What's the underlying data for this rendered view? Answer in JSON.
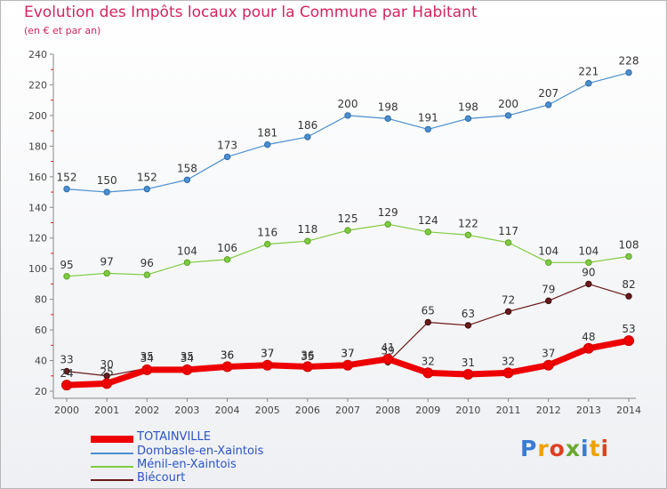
{
  "title": "Evolution des Impôts locaux pour la Commune par Habitant",
  "subtitle": "(en € et par an)",
  "logo_text": "Proxiti",
  "chart_data": {
    "type": "line",
    "title": "Evolution des Impôts locaux pour la Commune par Habitant",
    "subtitle": "(en € et par an)",
    "xlabel": "",
    "ylabel": "",
    "x": [
      2000,
      2001,
      2002,
      2003,
      2004,
      2005,
      2006,
      2007,
      2008,
      2009,
      2010,
      2011,
      2012,
      2013,
      2014
    ],
    "ylim": [
      20,
      240
    ],
    "yticks": [
      20,
      40,
      60,
      80,
      100,
      120,
      140,
      160,
      180,
      200,
      220,
      240
    ],
    "grid": false,
    "legend_position": "bottom-left",
    "series": [
      {
        "name": "TOTAINVILLE",
        "color": "#ee0000",
        "values": [
          24,
          25,
          34,
          34,
          36,
          37,
          36,
          37,
          41,
          32,
          31,
          32,
          37,
          48,
          53
        ]
      },
      {
        "name": "Dombasle-en-Xaintois",
        "color": "#4a8fd0",
        "values": [
          152,
          150,
          152,
          158,
          173,
          181,
          186,
          200,
          198,
          191,
          198,
          200,
          207,
          221,
          228
        ]
      },
      {
        "name": "Ménil-en-Xaintois",
        "color": "#80cc40",
        "values": [
          95,
          97,
          96,
          104,
          106,
          116,
          118,
          125,
          129,
          124,
          122,
          117,
          104,
          104,
          108
        ]
      },
      {
        "name": "Biécourt",
        "color": "#6b1a1a",
        "values": [
          33,
          30,
          35,
          35,
          36,
          37,
          35,
          37,
          39,
          65,
          63,
          72,
          79,
          90,
          82
        ]
      }
    ]
  }
}
